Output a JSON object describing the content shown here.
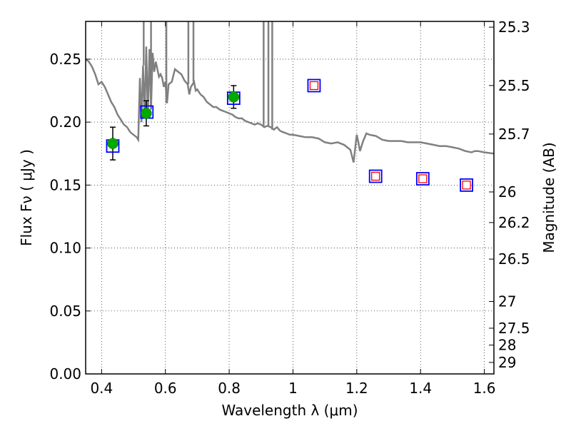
{
  "chart_data": {
    "type": "scatter",
    "xlabel": "Wavelength  λ (μm)",
    "ylabel": "Flux  Fν  ( μJy )",
    "y2label": "Magnitude (AB)",
    "xlim": [
      0.35,
      1.63
    ],
    "ylim": [
      0.0,
      0.28
    ],
    "grid": true,
    "x_ticks": [
      0.4,
      0.6,
      0.8,
      1.0,
      1.2,
      1.4,
      1.6
    ],
    "x_tick_labels": [
      "0.4",
      "0.6",
      "0.8",
      "1",
      "1.2",
      "1.4",
      "1.6"
    ],
    "y_ticks": [
      0.0,
      0.05,
      0.1,
      0.15,
      0.2,
      0.25
    ],
    "y_tick_labels": [
      "0.00",
      "0.05",
      "0.10",
      "0.15",
      "0.20",
      "0.25"
    ],
    "y2_ticks": [
      {
        "mag": 25.3,
        "label": "25.3"
      },
      {
        "mag": 25.5,
        "label": "25.5"
      },
      {
        "mag": 25.7,
        "label": "25.7"
      },
      {
        "mag": 26.0,
        "label": "26"
      },
      {
        "mag": 26.2,
        "label": "26.2"
      },
      {
        "mag": 26.5,
        "label": "26.5"
      },
      {
        "mag": 27.0,
        "label": "27"
      },
      {
        "mag": 27.5,
        "label": "27.5"
      },
      {
        "mag": 28.0,
        "label": "28"
      },
      {
        "mag": 29.0,
        "label": "29"
      }
    ],
    "colors": {
      "model": "#808080",
      "observed_point": "#00aa00",
      "model_box": "#0000ff",
      "upper_point": "#ff0000",
      "errorbar": "#000000"
    },
    "observed": [
      {
        "x": 0.435,
        "y": 0.183,
        "yerr": 0.013
      },
      {
        "x": 0.54,
        "y": 0.207,
        "yerr": 0.01
      },
      {
        "x": 0.814,
        "y": 0.22,
        "yerr": 0.009
      }
    ],
    "model_boxes": [
      {
        "x": 0.435,
        "y": 0.181
      },
      {
        "x": 0.542,
        "y": 0.208
      },
      {
        "x": 0.814,
        "y": 0.219
      },
      {
        "x": 1.066,
        "y": 0.229
      },
      {
        "x": 1.259,
        "y": 0.157
      },
      {
        "x": 1.407,
        "y": 0.155
      },
      {
        "x": 1.544,
        "y": 0.15
      }
    ],
    "red_points": [
      {
        "x": 1.066,
        "y": 0.229
      },
      {
        "x": 1.259,
        "y": 0.157
      },
      {
        "x": 1.407,
        "y": 0.155
      },
      {
        "x": 1.544,
        "y": 0.15
      }
    ],
    "model_spectrum": [
      [
        0.35,
        0.25
      ],
      [
        0.36,
        0.248
      ],
      [
        0.37,
        0.244
      ],
      [
        0.38,
        0.238
      ],
      [
        0.39,
        0.23
      ],
      [
        0.4,
        0.232
      ],
      [
        0.41,
        0.228
      ],
      [
        0.42,
        0.222
      ],
      [
        0.43,
        0.216
      ],
      [
        0.44,
        0.212
      ],
      [
        0.45,
        0.206
      ],
      [
        0.46,
        0.202
      ],
      [
        0.47,
        0.198
      ],
      [
        0.48,
        0.196
      ],
      [
        0.49,
        0.192
      ],
      [
        0.5,
        0.19
      ],
      [
        0.51,
        0.188
      ],
      [
        0.515,
        0.186
      ],
      [
        0.52,
        0.235
      ],
      [
        0.525,
        0.2
      ],
      [
        0.53,
        0.245
      ],
      [
        0.535,
        0.205
      ],
      [
        0.54,
        0.26
      ],
      [
        0.545,
        0.205
      ],
      [
        0.55,
        0.258
      ],
      [
        0.555,
        0.21
      ],
      [
        0.56,
        0.255
      ],
      [
        0.565,
        0.24
      ],
      [
        0.57,
        0.248
      ],
      [
        0.575,
        0.242
      ],
      [
        0.58,
        0.236
      ],
      [
        0.585,
        0.238
      ],
      [
        0.59,
        0.235
      ],
      [
        0.595,
        0.228
      ],
      [
        0.6,
        0.232
      ],
      [
        0.605,
        0.215
      ],
      [
        0.61,
        0.23
      ],
      [
        0.62,
        0.232
      ],
      [
        0.63,
        0.242
      ],
      [
        0.64,
        0.24
      ],
      [
        0.65,
        0.238
      ],
      [
        0.66,
        0.233
      ],
      [
        0.67,
        0.23
      ],
      [
        0.675,
        0.222
      ],
      [
        0.68,
        0.228
      ],
      [
        0.69,
        0.232
      ],
      [
        0.695,
        0.225
      ],
      [
        0.7,
        0.226
      ],
      [
        0.71,
        0.222
      ],
      [
        0.72,
        0.22
      ],
      [
        0.73,
        0.216
      ],
      [
        0.74,
        0.214
      ],
      [
        0.75,
        0.212
      ],
      [
        0.76,
        0.212
      ],
      [
        0.77,
        0.21
      ],
      [
        0.78,
        0.209
      ],
      [
        0.79,
        0.208
      ],
      [
        0.8,
        0.207
      ],
      [
        0.81,
        0.206
      ],
      [
        0.82,
        0.204
      ],
      [
        0.83,
        0.203
      ],
      [
        0.84,
        0.203
      ],
      [
        0.85,
        0.201
      ],
      [
        0.86,
        0.2
      ],
      [
        0.87,
        0.199
      ],
      [
        0.88,
        0.198
      ],
      [
        0.89,
        0.199
      ],
      [
        0.9,
        0.198
      ],
      [
        0.91,
        0.196
      ],
      [
        0.92,
        0.197
      ],
      [
        0.93,
        0.196
      ],
      [
        0.94,
        0.194
      ],
      [
        0.95,
        0.196
      ],
      [
        0.96,
        0.193
      ],
      [
        0.97,
        0.192
      ],
      [
        0.98,
        0.191
      ],
      [
        0.99,
        0.19
      ],
      [
        1.0,
        0.19
      ],
      [
        1.02,
        0.189
      ],
      [
        1.04,
        0.188
      ],
      [
        1.06,
        0.188
      ],
      [
        1.08,
        0.187
      ],
      [
        1.1,
        0.184
      ],
      [
        1.12,
        0.183
      ],
      [
        1.14,
        0.184
      ],
      [
        1.16,
        0.182
      ],
      [
        1.17,
        0.18
      ],
      [
        1.18,
        0.178
      ],
      [
        1.19,
        0.168
      ],
      [
        1.2,
        0.19
      ],
      [
        1.205,
        0.184
      ],
      [
        1.21,
        0.177
      ],
      [
        1.22,
        0.185
      ],
      [
        1.23,
        0.191
      ],
      [
        1.24,
        0.19
      ],
      [
        1.26,
        0.189
      ],
      [
        1.28,
        0.186
      ],
      [
        1.3,
        0.185
      ],
      [
        1.32,
        0.185
      ],
      [
        1.34,
        0.185
      ],
      [
        1.36,
        0.184
      ],
      [
        1.38,
        0.184
      ],
      [
        1.4,
        0.184
      ],
      [
        1.42,
        0.183
      ],
      [
        1.44,
        0.182
      ],
      [
        1.46,
        0.181
      ],
      [
        1.48,
        0.181
      ],
      [
        1.5,
        0.18
      ],
      [
        1.52,
        0.179
      ],
      [
        1.54,
        0.177
      ],
      [
        1.56,
        0.176
      ],
      [
        1.57,
        0.177
      ],
      [
        1.58,
        0.177
      ],
      [
        1.6,
        0.176
      ],
      [
        1.63,
        0.175
      ]
    ],
    "spikes": [
      {
        "x": 0.532,
        "y": 0.28
      },
      {
        "x": 0.555,
        "y": 0.28
      },
      {
        "x": 0.603,
        "y": 0.28
      },
      {
        "x": 0.672,
        "y": 0.28
      },
      {
        "x": 0.688,
        "y": 0.28
      },
      {
        "x": 0.908,
        "y": 0.28
      },
      {
        "x": 0.923,
        "y": 0.28
      },
      {
        "x": 0.935,
        "y": 0.28
      }
    ]
  }
}
